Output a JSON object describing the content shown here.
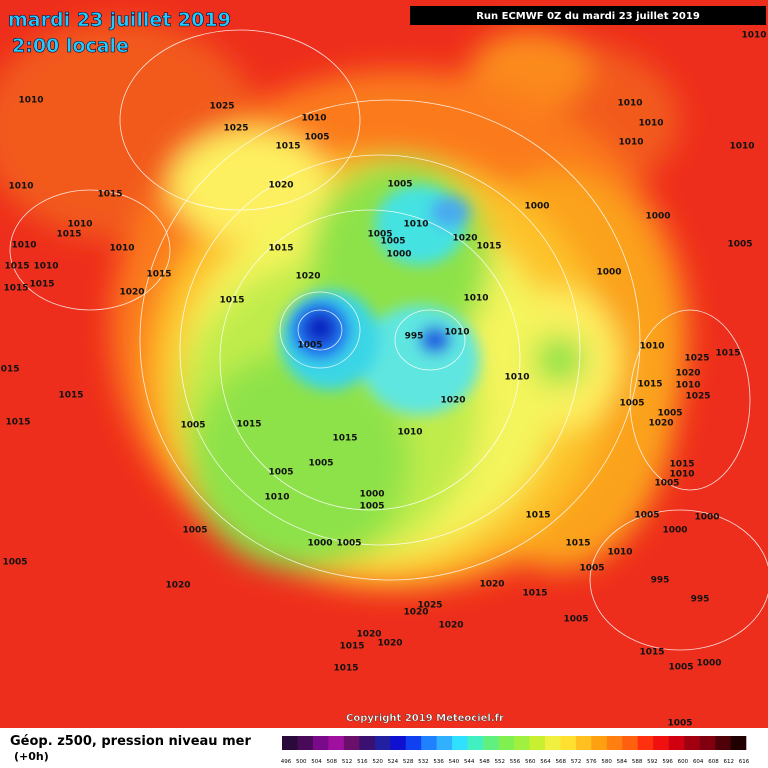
{
  "header": {
    "date": "mardi 23 juillet 2019",
    "time": "2:00 locale",
    "run": "Run ECMWF 0Z du mardi 23 juillet 2019"
  },
  "footer": {
    "copyright": "Copyright 2019 Meteociel.fr",
    "product": "Géop. z500, pression niveau mer",
    "lead": "(+0h)"
  },
  "isobar_labels": [
    "1025",
    "1025",
    "1010",
    "1005",
    "1015",
    "1020",
    "1005",
    "1010",
    "1005",
    "1005",
    "1000",
    "1020",
    "1015",
    "1000",
    "1015",
    "1020",
    "1015",
    "1010",
    "995",
    "1010",
    "1005",
    "1010",
    "1020",
    "1010",
    "1015",
    "1005",
    "1015",
    "1005",
    "1005",
    "1010",
    "1000",
    "1005",
    "1000",
    "1005",
    "1005",
    "1020",
    "1015",
    "1020",
    "1015",
    "1025",
    "1020",
    "1020",
    "1020",
    "1020",
    "1015",
    "1015",
    "1005",
    "1005",
    "1015",
    "1010",
    "995",
    "995",
    "1005",
    "1000",
    "1005",
    "1015",
    "1010",
    "1010",
    "1010",
    "1010",
    "1010",
    "1000",
    "1000",
    "1005",
    "1010",
    "1015",
    "1005",
    "1005",
    "1020",
    "1025",
    "1015",
    "1025",
    "1020",
    "1010",
    "1015",
    "1010",
    "1005",
    "1000",
    "1000",
    "1005",
    "1010",
    "1015",
    "1010",
    "1010",
    "1015",
    "1010",
    "1015",
    "1010",
    "1015",
    "1020",
    "1015",
    "1015",
    "1015",
    "1015",
    "1015",
    "1010",
    "1005"
  ],
  "colorbar": {
    "labels": [
      "496",
      "500",
      "504",
      "508",
      "512",
      "516",
      "520",
      "524",
      "528",
      "532",
      "536",
      "540",
      "544",
      "548",
      "552",
      "556",
      "560",
      "564",
      "568",
      "572",
      "576",
      "580",
      "584",
      "588",
      "592",
      "596",
      "600",
      "604",
      "608",
      "612",
      "616"
    ],
    "colors": [
      "#2a0a3a",
      "#4a0a5a",
      "#7a0a8a",
      "#a010a0",
      "#6a106a",
      "#3a1070",
      "#2020a0",
      "#1010d0",
      "#1040f0",
      "#2080ff",
      "#30b0ff",
      "#30e0ff",
      "#40f0c0",
      "#60f080",
      "#80f050",
      "#a0f040",
      "#c8f030",
      "#f0f040",
      "#ffe030",
      "#ffc020",
      "#ffa010",
      "#ff8010",
      "#ff6010",
      "#ff3010",
      "#f01010",
      "#d00010",
      "#a00010",
      "#800010",
      "#500008",
      "#200000"
    ]
  }
}
